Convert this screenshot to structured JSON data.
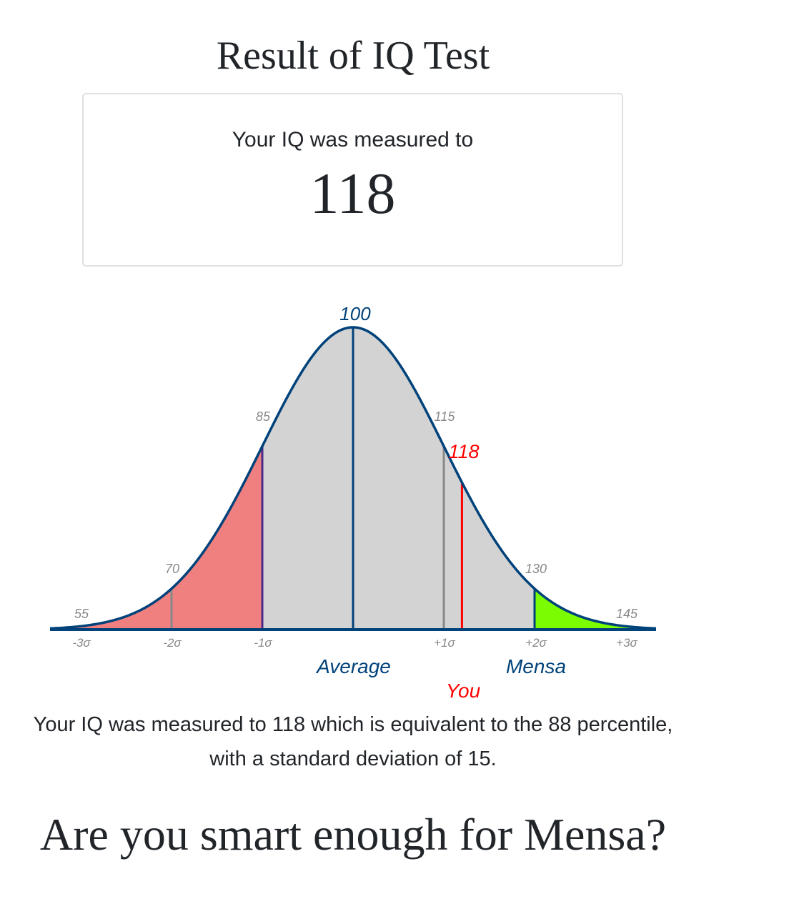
{
  "title": "Result of IQ Test",
  "result_box": {
    "lead": "Your IQ was measured to",
    "iq": "118"
  },
  "chart_data": {
    "type": "area",
    "distribution": "normal",
    "mean": 100,
    "sd": 15,
    "value_ticks": [
      "55",
      "70",
      "85",
      "100",
      "115",
      "130",
      "145"
    ],
    "sigma_ticks": [
      "-3σ",
      "-2σ",
      "-1σ",
      "+1σ",
      "+2σ",
      "+3σ"
    ],
    "markers": [
      {
        "value": 70,
        "color": "#888888"
      },
      {
        "value": 85,
        "color": "#4b2a8a"
      },
      {
        "value": 100,
        "color": "#00427a"
      },
      {
        "value": 115,
        "color": "#888888"
      },
      {
        "value": 118,
        "color": "#ff0000"
      },
      {
        "value": 130,
        "color": "#00427a"
      }
    ],
    "regions": [
      {
        "from": 55,
        "to": 85,
        "color": "#f08080"
      },
      {
        "from": 85,
        "to": 130,
        "color": "#d3d3d3"
      },
      {
        "from": 130,
        "to": 145,
        "color": "#7cfc00"
      }
    ],
    "you_value": "118",
    "annotations": {
      "average": "Average",
      "mensa": "Mensa",
      "you": "You"
    },
    "curve_color": "#00427a"
  },
  "paragraph": "Your IQ was measured to 118 which is equivalent to the 88 percentile, with a standard deviation of 15.",
  "heading2": "Are you smart enough for Mensa?"
}
